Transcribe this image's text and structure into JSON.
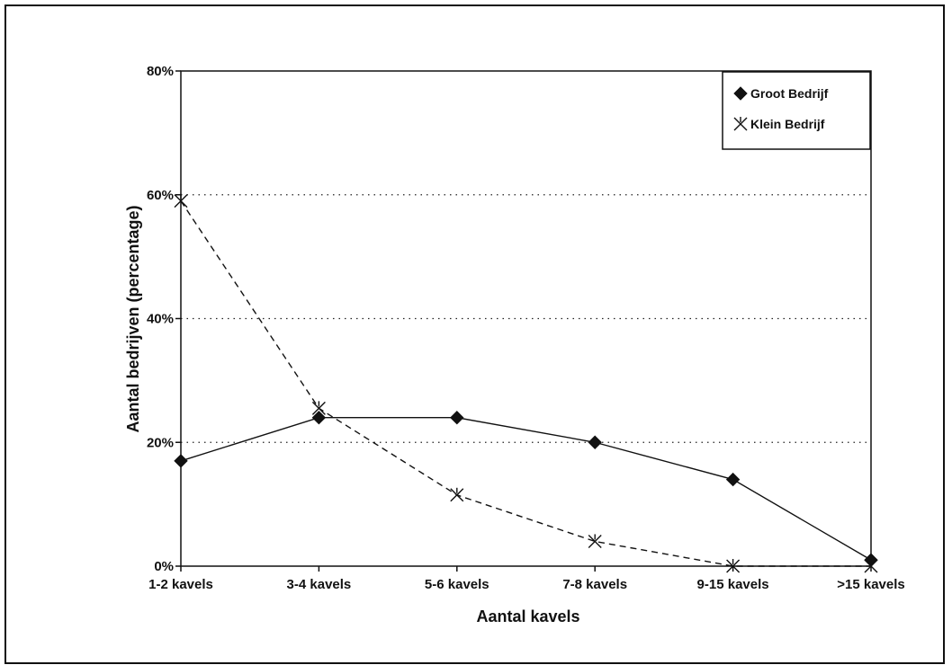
{
  "chart_data": {
    "type": "line",
    "title": "",
    "xlabel": "Aantal kavels",
    "ylabel": "Aantal bedrijven (percentage)",
    "categories": [
      "1-2 kavels",
      "3-4 kavels",
      "5-6 kavels",
      "7-8 kavels",
      "9-15 kavels",
      ">15 kavels"
    ],
    "ylim": [
      0,
      80
    ],
    "yticks": [
      0,
      20,
      40,
      60,
      80
    ],
    "ytick_labels": [
      "0%",
      "20%",
      "40%",
      "60%",
      "80%"
    ],
    "grid": "horizontal dotted",
    "legend_position": "top-right",
    "series": [
      {
        "name": "Groot Bedrijf",
        "values": [
          17,
          24,
          24,
          20,
          14,
          1
        ],
        "marker": "diamond",
        "line_style": "solid",
        "color": "#111111"
      },
      {
        "name": "Klein Bedrijf",
        "values": [
          59,
          25.5,
          11.5,
          4,
          0,
          0
        ],
        "marker": "asterisk",
        "line_style": "dashed",
        "color": "#111111"
      }
    ]
  }
}
